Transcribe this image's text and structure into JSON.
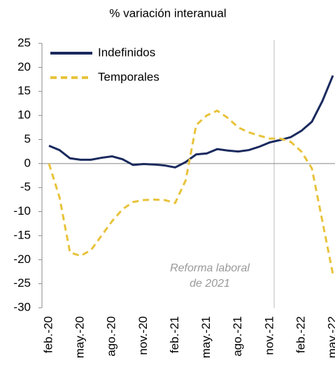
{
  "chart_data": {
    "type": "line",
    "title": "% variación interanual",
    "annotation": "Reforma laboral de 2021",
    "categories": [
      "feb.-20",
      null,
      null,
      "may.-20",
      null,
      null,
      "ago.-20",
      null,
      null,
      "nov.-20",
      null,
      null,
      "feb.-21",
      null,
      null,
      "may.-21",
      null,
      null,
      "ago.-21",
      null,
      null,
      "nov.-21",
      null,
      null,
      "feb.-22",
      null,
      null,
      "may.-22"
    ],
    "series": [
      {
        "name": "Indefinidos",
        "color": "#1a2a5e",
        "dash": false,
        "values": [
          3.7,
          2.8,
          1.1,
          0.8,
          0.8,
          1.2,
          1.5,
          0.9,
          -0.3,
          -0.1,
          -0.2,
          -0.4,
          -0.8,
          0.3,
          1.9,
          2.1,
          3.0,
          2.7,
          2.5,
          2.8,
          3.5,
          4.4,
          4.9,
          5.5,
          6.8,
          8.7,
          13,
          18.3
        ]
      },
      {
        "name": "Temporales",
        "color": "#e8c33c",
        "dash": true,
        "values": [
          0,
          -7,
          -18.5,
          -19.2,
          -18,
          -15,
          -12,
          -9.5,
          -8,
          -7.6,
          -7.5,
          -7.6,
          -8.2,
          -3.5,
          8,
          10,
          11,
          9.5,
          7.5,
          6.5,
          5.8,
          5.2,
          5.2,
          4.5,
          2.5,
          -1,
          -12,
          -23
        ]
      }
    ],
    "ylim": [
      -30,
      25
    ],
    "yticks": [
      -30,
      -25,
      -20,
      -15,
      -10,
      -5,
      0,
      5,
      10,
      15,
      20,
      25
    ],
    "legend": "top-left"
  }
}
